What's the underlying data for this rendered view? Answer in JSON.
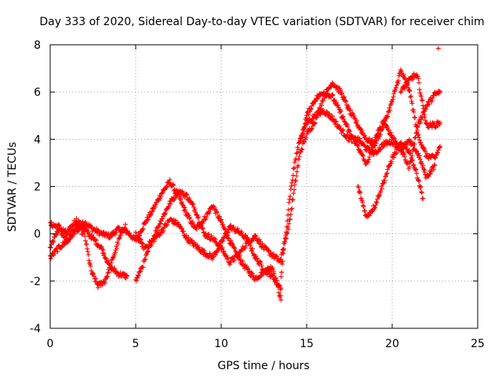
{
  "chart_data": {
    "type": "scatter",
    "title": "Day 333 of 2020, Sidereal Day-to-day VTEC variation (SDTVAR) for receiver chim",
    "xlabel": "GPS time / hours",
    "ylabel": "SDTVAR / TECUs",
    "xlim": [
      0,
      25
    ],
    "ylim": [
      -4,
      8
    ],
    "xticks": [
      0,
      5,
      10,
      15,
      20,
      25
    ],
    "yticks": [
      -4,
      -2,
      0,
      2,
      4,
      6,
      8
    ],
    "grid": true,
    "marker": "+",
    "series_color": "#ff0000",
    "tracks": [
      {
        "name": "track-1",
        "points": [
          [
            0,
            -0.6
          ],
          [
            0.5,
            0.2
          ],
          [
            1,
            -0.3
          ],
          [
            1.5,
            0.1
          ],
          [
            2,
            0.5
          ],
          [
            2.5,
            0.2
          ],
          [
            3,
            0.0
          ],
          [
            3.5,
            -0.1
          ],
          [
            4,
            0.2
          ],
          [
            4.5,
            0.1
          ],
          [
            5,
            -0.3
          ],
          [
            5.5,
            0.4
          ],
          [
            6,
            1.0
          ],
          [
            6.5,
            1.7
          ],
          [
            7,
            2.2
          ],
          [
            7.5,
            1.6
          ],
          [
            8,
            0.8
          ],
          [
            8.5,
            0.2
          ],
          [
            9,
            0.6
          ],
          [
            9.5,
            1.2
          ],
          [
            10,
            0.5
          ],
          [
            10.5,
            -0.3
          ],
          [
            11,
            -1.0
          ],
          [
            11.5,
            -1.5
          ],
          [
            12,
            -1.9
          ],
          [
            12.5,
            -1.6
          ],
          [
            13,
            -1.4
          ],
          [
            13.5,
            -2.8
          ]
        ]
      },
      {
        "name": "track-2",
        "points": [
          [
            0,
            0.4
          ],
          [
            0.5,
            0.3
          ],
          [
            1,
            0.0
          ],
          [
            1.5,
            0.6
          ],
          [
            2,
            0.2
          ],
          [
            2.5,
            -0.2
          ],
          [
            3,
            -0.6
          ],
          [
            3.5,
            -1.4
          ],
          [
            4,
            -1.7
          ],
          [
            4.5,
            -1.8
          ]
        ]
      },
      {
        "name": "track-3",
        "points": [
          [
            0,
            -1.0
          ],
          [
            0.5,
            -0.6
          ],
          [
            1,
            -0.3
          ],
          [
            1.5,
            0.3
          ],
          [
            2,
            0.0
          ],
          [
            2.4,
            -1.6
          ],
          [
            2.8,
            -2.2
          ],
          [
            3.2,
            -2.0
          ],
          [
            3.6,
            -1.2
          ],
          [
            4,
            -0.3
          ],
          [
            4.4,
            0.4
          ]
        ]
      },
      {
        "name": "track-4",
        "points": [
          [
            5,
            -2.0
          ],
          [
            5.5,
            -1.2
          ],
          [
            6,
            -0.2
          ],
          [
            6.5,
            0.6
          ],
          [
            7,
            1.3
          ],
          [
            7.5,
            1.8
          ],
          [
            8,
            1.6
          ],
          [
            8.5,
            1.0
          ],
          [
            9,
            0.0
          ],
          [
            9.5,
            -0.2
          ],
          [
            10,
            -0.6
          ],
          [
            10.5,
            -1.2
          ],
          [
            11,
            -0.9
          ],
          [
            11.5,
            -0.4
          ],
          [
            12,
            -0.1
          ],
          [
            12.5,
            -0.6
          ],
          [
            13,
            -0.9
          ],
          [
            13.5,
            -1.2
          ]
        ]
      },
      {
        "name": "track-5",
        "points": [
          [
            5,
            0.0
          ],
          [
            5.5,
            -0.6
          ],
          [
            6,
            -0.3
          ],
          [
            6.5,
            0.1
          ],
          [
            7,
            0.6
          ],
          [
            7.5,
            0.4
          ],
          [
            8,
            -0.2
          ],
          [
            8.5,
            -0.5
          ],
          [
            9,
            -0.8
          ],
          [
            9.5,
            -1.0
          ],
          [
            10,
            -0.4
          ],
          [
            10.5,
            0.3
          ],
          [
            11,
            0.1
          ],
          [
            11.5,
            -0.2
          ],
          [
            12,
            -1.0
          ],
          [
            12.5,
            -1.5
          ],
          [
            13,
            -1.8
          ],
          [
            13.5,
            -2.3
          ]
        ]
      },
      {
        "name": "track-6",
        "points": [
          [
            13.5,
            -1.0
          ],
          [
            14,
            0.5
          ],
          [
            14.3,
            2.0
          ],
          [
            14.6,
            3.4
          ],
          [
            15,
            4.2
          ],
          [
            15.5,
            4.8
          ],
          [
            16,
            5.8
          ],
          [
            16.5,
            6.4
          ],
          [
            17,
            6.0
          ],
          [
            17.5,
            5.2
          ],
          [
            18,
            4.6
          ],
          [
            18.5,
            4.0
          ],
          [
            19,
            3.8
          ],
          [
            19.5,
            4.6
          ],
          [
            20,
            5.6
          ],
          [
            20.5,
            6.9
          ],
          [
            21,
            6.1
          ],
          [
            21.5,
            4.2
          ],
          [
            22,
            3.3
          ],
          [
            22.5,
            3.2
          ],
          [
            22.8,
            3.7
          ]
        ]
      },
      {
        "name": "track-7",
        "points": [
          [
            13.5,
            -1.8
          ],
          [
            14,
            1.5
          ],
          [
            14.3,
            3.0
          ],
          [
            14.6,
            4.0
          ],
          [
            15,
            4.7
          ],
          [
            15.5,
            5.0
          ],
          [
            16,
            5.2
          ],
          [
            16.5,
            4.9
          ],
          [
            17,
            4.4
          ],
          [
            17.5,
            4.0
          ],
          [
            18,
            4.0
          ],
          [
            18.5,
            3.6
          ],
          [
            19,
            3.4
          ],
          [
            19.5,
            3.8
          ],
          [
            20,
            3.9
          ],
          [
            20.5,
            3.6
          ],
          [
            21,
            3.9
          ],
          [
            21.5,
            3.4
          ],
          [
            22,
            2.4
          ],
          [
            22.5,
            2.9
          ]
        ]
      },
      {
        "name": "track-8",
        "points": [
          [
            14.6,
            3.8
          ],
          [
            15,
            5.0
          ],
          [
            15.5,
            5.7
          ],
          [
            16,
            6.0
          ],
          [
            16.5,
            5.8
          ],
          [
            17,
            5.1
          ],
          [
            17.5,
            4.3
          ],
          [
            18,
            3.7
          ],
          [
            18.5,
            2.9
          ],
          [
            19,
            4.0
          ],
          [
            19.5,
            4.8
          ],
          [
            20,
            4.1
          ],
          [
            20.5,
            3.6
          ],
          [
            21,
            2.8
          ],
          [
            21.5,
            4.6
          ],
          [
            22,
            5.4
          ],
          [
            22.5,
            5.9
          ],
          [
            22.8,
            6.0
          ]
        ]
      },
      {
        "name": "track-9",
        "points": [
          [
            18,
            2.0
          ],
          [
            18.5,
            0.7
          ],
          [
            19,
            1.2
          ],
          [
            19.5,
            2.2
          ],
          [
            20,
            3.2
          ],
          [
            20.5,
            3.8
          ],
          [
            21,
            3.5
          ],
          [
            21.5,
            2.4
          ],
          [
            21.8,
            1.5
          ]
        ]
      },
      {
        "name": "track-10",
        "points": [
          [
            20.5,
            6.0
          ],
          [
            21,
            6.5
          ],
          [
            21.3,
            6.7
          ],
          [
            21.5,
            6.6
          ],
          [
            22,
            4.6
          ],
          [
            22.5,
            4.6
          ],
          [
            22.8,
            4.7
          ]
        ]
      }
    ],
    "outliers": [
      [
        22.7,
        7.85
      ]
    ]
  }
}
